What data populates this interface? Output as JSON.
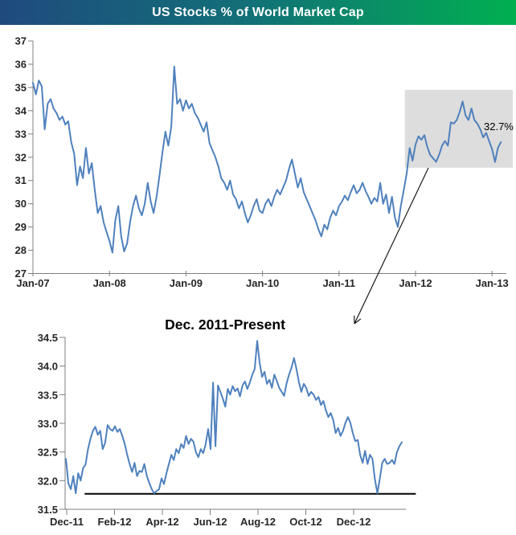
{
  "header": {
    "title": "US Stocks % of World Market Cap"
  },
  "colors": {
    "header_gradient": [
      "#1F4A7E",
      "#127078",
      "#00B050"
    ],
    "series_line": "#4F81BD",
    "axis_line": "#7F7F7F",
    "tick_label": "#262626",
    "highlight_box_fill": "#DDDDDD",
    "annotation": "#000000"
  },
  "annotation": {
    "current_value_label": "32.7%"
  },
  "chart_data": [
    {
      "id": "main-chart",
      "type": "line",
      "title": "US Stocks % of World Market Cap",
      "xlabel": "",
      "ylabel": "",
      "x_unit": "decimal_year",
      "x_start": 2007.0,
      "x_step": 0.0384615,
      "ylim": [
        27,
        37
      ],
      "yticks": [
        27,
        28,
        29,
        30,
        31,
        32,
        33,
        34,
        35,
        36,
        37
      ],
      "xticks": [
        {
          "t": 2007,
          "label": "Jan-07"
        },
        {
          "t": 2008,
          "label": "Jan-08"
        },
        {
          "t": 2009,
          "label": "Jan-09"
        },
        {
          "t": 2010,
          "label": "Jan-10"
        },
        {
          "t": 2011,
          "label": "Jan-11"
        },
        {
          "t": 2012,
          "label": "Jan-12"
        },
        {
          "t": 2013,
          "label": "Jan-13"
        }
      ],
      "grid": false,
      "legend": "none",
      "end_label": "32.7%",
      "highlight_region": {
        "x_from": 2011.86,
        "x_to": 2013.28,
        "y_from": 31.55,
        "y_to": 34.9
      },
      "values": [
        35.2,
        34.7,
        35.3,
        35.05,
        33.2,
        34.3,
        34.5,
        34.1,
        33.9,
        33.6,
        33.75,
        33.4,
        33.55,
        32.65,
        32.15,
        30.8,
        31.6,
        31.1,
        32.4,
        31.3,
        31.75,
        30.6,
        29.6,
        29.9,
        29.2,
        28.8,
        28.4,
        27.9,
        29.3,
        29.9,
        28.6,
        27.95,
        28.3,
        29.2,
        29.9,
        30.35,
        29.8,
        29.5,
        30.0,
        30.9,
        30.1,
        29.6,
        30.3,
        31.2,
        32.2,
        33.1,
        32.5,
        33.3,
        35.9,
        34.3,
        34.5,
        34.0,
        34.45,
        34.1,
        34.3,
        33.9,
        33.7,
        33.4,
        33.1,
        33.5,
        32.6,
        32.3,
        32.0,
        31.6,
        31.1,
        30.9,
        30.6,
        31.0,
        30.4,
        30.2,
        29.8,
        30.1,
        29.6,
        29.2,
        29.5,
        29.9,
        30.2,
        29.7,
        29.6,
        30.0,
        30.2,
        29.9,
        30.3,
        30.6,
        30.4,
        30.7,
        31.0,
        31.5,
        31.9,
        31.3,
        30.7,
        31.1,
        30.5,
        30.2,
        29.9,
        29.6,
        29.3,
        28.9,
        28.6,
        29.1,
        28.9,
        29.4,
        29.7,
        29.5,
        29.9,
        30.1,
        30.35,
        30.15,
        30.5,
        30.8,
        30.45,
        30.6,
        30.9,
        30.55,
        30.3,
        30.0,
        30.25,
        30.1,
        30.9,
        30.0,
        30.4,
        29.6,
        30.3,
        29.4,
        29.0,
        29.9,
        30.6,
        31.3,
        32.4,
        31.85,
        32.55,
        32.9,
        32.75,
        32.95,
        32.45,
        32.1,
        31.95,
        31.8,
        32.1,
        32.5,
        32.7,
        32.5,
        33.5,
        33.45,
        33.6,
        33.95,
        34.4,
        33.8,
        33.6,
        34.1,
        33.6,
        33.45,
        33.2,
        32.85,
        33.05,
        32.7,
        32.35,
        31.8,
        32.4,
        32.65
      ]
    },
    {
      "id": "zoom-chart",
      "type": "line",
      "title": "Dec. 2011-Present",
      "xlabel": "",
      "ylabel": "",
      "x_unit": "months_from_dec_2011",
      "x_start": 0,
      "x_end": 14.0,
      "ylim": [
        31.5,
        34.5
      ],
      "yticks": [
        "31.5",
        "32.0",
        "32.5",
        "33.0",
        "33.5",
        "34.0",
        "34.5"
      ],
      "xticks": [
        {
          "m": 0,
          "label": "Dec-11"
        },
        {
          "m": 2,
          "label": "Feb-12"
        },
        {
          "m": 4,
          "label": "Apr-12"
        },
        {
          "m": 6,
          "label": "Jun-12"
        },
        {
          "m": 8,
          "label": "Aug-12"
        },
        {
          "m": 10,
          "label": "Oct-12"
        },
        {
          "m": 12,
          "label": "Dec-12"
        }
      ],
      "grid": false,
      "legend": "none",
      "baseline": {
        "value": 31.77,
        "x_from_month": 0.75,
        "x_to_month": 14.6
      },
      "values": [
        32.38,
        31.95,
        31.85,
        32.08,
        31.78,
        32.13,
        32.0,
        32.22,
        32.28,
        32.55,
        32.73,
        32.87,
        32.94,
        32.8,
        32.87,
        32.55,
        32.66,
        32.97,
        32.9,
        32.87,
        32.95,
        32.85,
        32.9,
        32.78,
        32.64,
        32.45,
        32.29,
        32.15,
        32.31,
        32.08,
        32.17,
        32.15,
        32.29,
        32.08,
        31.96,
        31.85,
        31.78,
        31.82,
        31.85,
        32.04,
        31.94,
        32.13,
        32.29,
        32.45,
        32.36,
        32.55,
        32.48,
        32.64,
        32.57,
        32.78,
        32.64,
        32.73,
        32.68,
        32.5,
        32.41,
        32.55,
        32.48,
        32.64,
        32.9,
        32.55,
        33.71,
        32.6,
        33.66,
        33.55,
        33.43,
        33.29,
        33.6,
        33.5,
        33.65,
        33.56,
        33.61,
        33.47,
        33.66,
        33.73,
        33.6,
        33.71,
        33.85,
        33.95,
        34.44,
        34.06,
        33.81,
        33.9,
        33.69,
        33.76,
        33.62,
        33.85,
        33.74,
        33.62,
        33.55,
        33.48,
        33.7,
        33.85,
        33.97,
        34.14,
        33.95,
        33.72,
        33.55,
        33.69,
        33.62,
        33.48,
        33.55,
        33.5,
        33.41,
        33.46,
        33.32,
        33.39,
        33.23,
        33.11,
        33.18,
        33.06,
        32.83,
        32.92,
        32.78,
        32.87,
        33.01,
        33.11,
        33.01,
        32.83,
        32.69,
        32.71,
        32.45,
        32.31,
        32.52,
        32.29,
        32.45,
        32.38,
        32.03,
        31.78,
        32.03,
        32.31,
        32.38,
        32.29,
        32.31,
        32.36,
        32.29,
        32.5,
        32.6,
        32.67
      ]
    }
  ]
}
